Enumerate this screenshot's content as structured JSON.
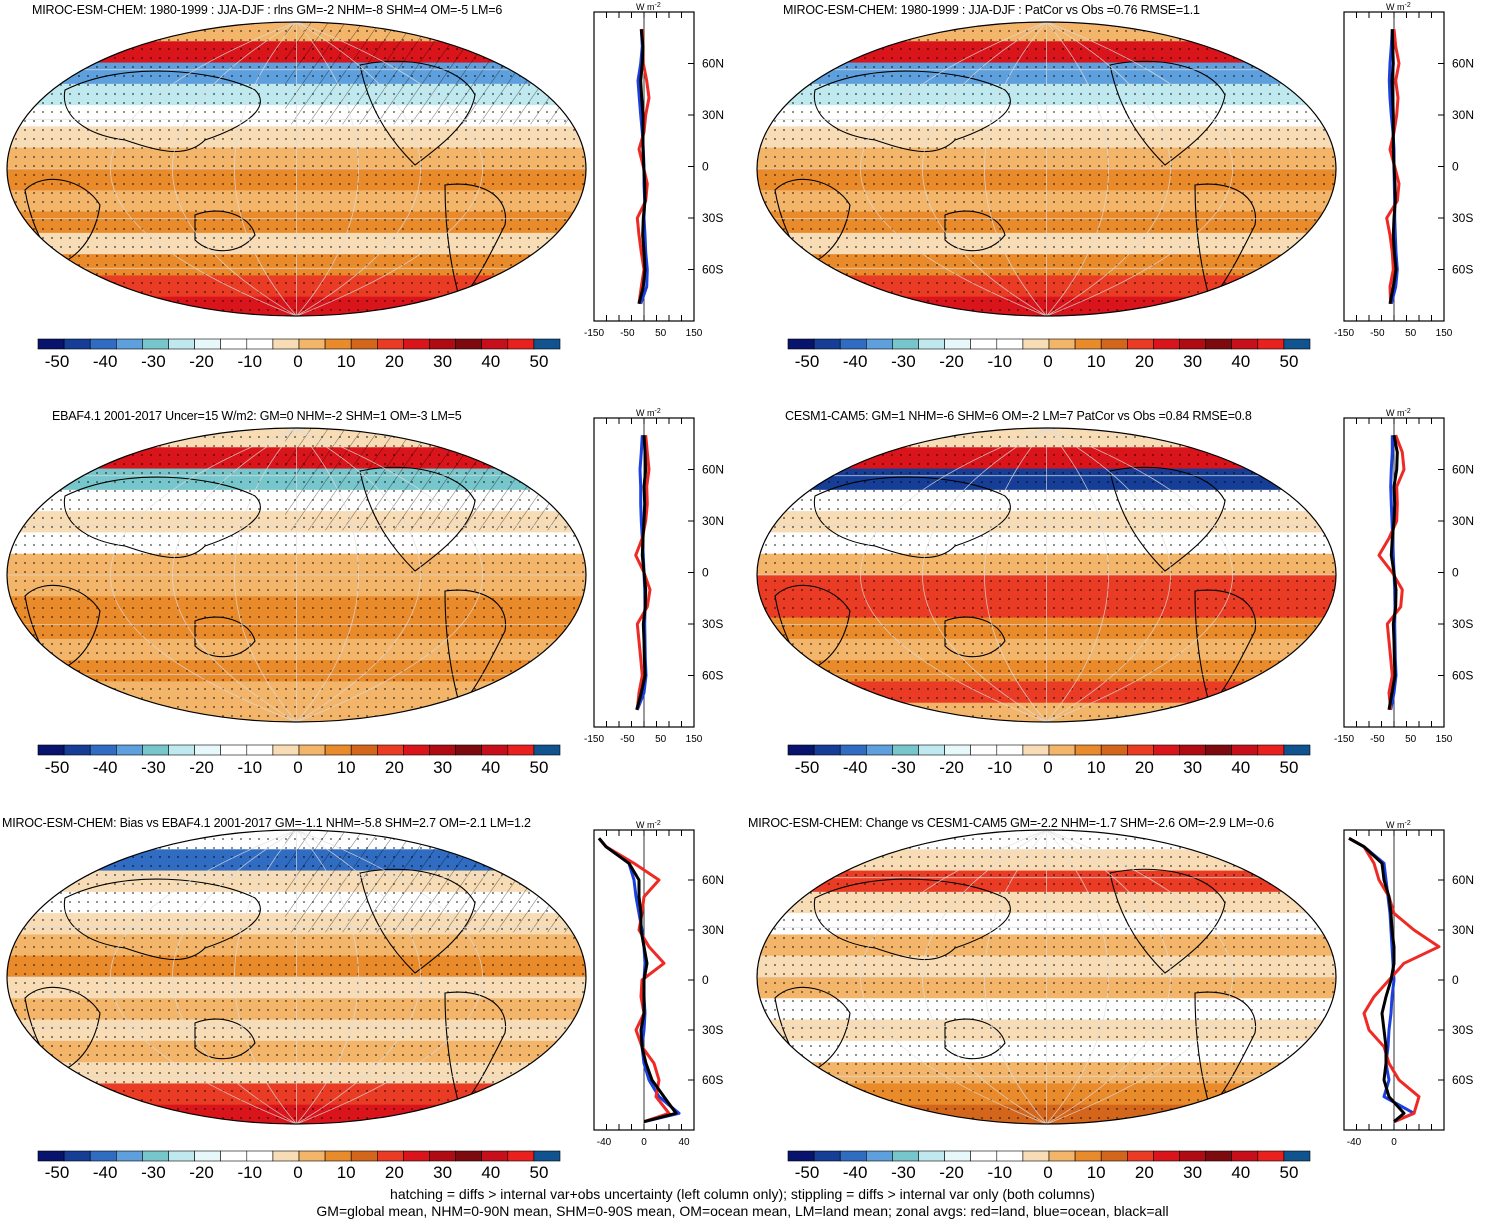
{
  "chart_data": [
    {
      "type": "heatmap",
      "title": "MIROC-ESM-CHEM: 1980-1999 : JJA-DJF : rlns GM=-2 NHM=-8 SHM=4 OM=-5 LM=6",
      "colorbar_ticks": [
        "-50",
        "-40",
        "-30",
        "-20",
        "-10",
        "0",
        "10",
        "20",
        "30",
        "40",
        "50"
      ],
      "zonal": {
        "units": "W m-2",
        "xticks": [
          "-150",
          "-50",
          "50",
          "150"
        ],
        "xlim": [
          -150,
          150
        ],
        "yticks": [
          "60N",
          "30N",
          "0",
          "30S",
          "60S"
        ],
        "lat": [
          80,
          70,
          60,
          50,
          40,
          30,
          20,
          10,
          0,
          -10,
          -20,
          -30,
          -40,
          -50,
          -60,
          -70,
          -80
        ],
        "land": [
          -5,
          -3,
          -2,
          8,
          15,
          5,
          0,
          -15,
          -2,
          10,
          5,
          -20,
          -15,
          -8,
          0,
          -8,
          -15
        ],
        "ocean": [
          -8,
          -5,
          -10,
          -18,
          -14,
          -10,
          -5,
          -2,
          0,
          0,
          2,
          0,
          3,
          5,
          10,
          8,
          -10
        ],
        "all": [
          -8,
          -3,
          -5,
          -10,
          -7,
          -3,
          -3,
          -3,
          -1,
          2,
          3,
          -2,
          -4,
          0,
          3,
          -2,
          -15
        ]
      }
    },
    {
      "type": "heatmap",
      "title": "MIROC-ESM-CHEM: 1980-1999 : JJA-DJF : PatCor vs Obs =0.76 RMSE=1.1",
      "colorbar_ticks": [
        "-50",
        "-40",
        "-30",
        "-20",
        "-10",
        "0",
        "10",
        "20",
        "30",
        "40",
        "50"
      ],
      "zonal": {
        "units": "W m-2",
        "xticks": [
          "-150",
          "-50",
          "50",
          "150"
        ],
        "xlim": [
          -150,
          150
        ],
        "yticks": [
          "60N",
          "30N",
          "0",
          "30S",
          "60S"
        ],
        "lat": [
          80,
          70,
          60,
          50,
          40,
          30,
          20,
          10,
          0,
          -10,
          -20,
          -30,
          -40,
          -50,
          -60,
          -70,
          -80
        ],
        "land": [
          0,
          5,
          15,
          5,
          12,
          8,
          0,
          -12,
          2,
          15,
          10,
          -22,
          -12,
          -5,
          -2,
          -12,
          -10
        ],
        "ocean": [
          -5,
          -8,
          -12,
          -14,
          -12,
          -8,
          -3,
          0,
          0,
          1,
          2,
          2,
          4,
          6,
          10,
          5,
          -8
        ],
        "all": [
          -5,
          -4,
          -2,
          -6,
          -4,
          -2,
          -2,
          -2,
          0,
          3,
          4,
          0,
          -2,
          1,
          6,
          -2,
          -12
        ]
      }
    },
    {
      "type": "heatmap",
      "title": "EBAF4.1 2001-2017 Uncer=15 W/m2: GM=0 NHM=-2 SHM=1 OM=-3 LM=5",
      "colorbar_ticks": [
        "-50",
        "-40",
        "-30",
        "-20",
        "-10",
        "0",
        "10",
        "20",
        "30",
        "40",
        "50"
      ],
      "zonal": {
        "units": "W m-2",
        "xticks": [
          "-150",
          "-50",
          "50",
          "150"
        ],
        "xlim": [
          -150,
          150
        ],
        "yticks": [
          "60N",
          "30N",
          "0",
          "30S",
          "60S"
        ],
        "lat": [
          80,
          70,
          60,
          50,
          40,
          30,
          20,
          10,
          0,
          -10,
          -20,
          -30,
          -40,
          -50,
          -60,
          -70,
          -80
        ],
        "land": [
          5,
          10,
          15,
          8,
          10,
          5,
          -5,
          -25,
          0,
          18,
          10,
          -20,
          -15,
          -10,
          -5,
          -15,
          -20
        ],
        "ocean": [
          -5,
          -8,
          -12,
          -10,
          -10,
          -8,
          -5,
          -2,
          0,
          2,
          3,
          2,
          3,
          4,
          6,
          0,
          -20
        ],
        "all": [
          0,
          3,
          5,
          0,
          2,
          0,
          -3,
          -5,
          0,
          5,
          4,
          -2,
          0,
          1,
          3,
          -8,
          -22
        ]
      }
    },
    {
      "type": "heatmap",
      "title": "CESM1-CAM5: GM=1 NHM=-6 SHM=6 OM=-2 LM=7 PatCor vs Obs =0.84 RMSE=0.8",
      "colorbar_ticks": [
        "-50",
        "-40",
        "-30",
        "-20",
        "-10",
        "0",
        "10",
        "20",
        "30",
        "40",
        "50"
      ],
      "zonal": {
        "units": "W m-2",
        "xticks": [
          "-150",
          "-50",
          "50",
          "150"
        ],
        "xlim": [
          -150,
          150
        ],
        "yticks": [
          "60N",
          "30N",
          "0",
          "30S",
          "60S"
        ],
        "lat": [
          80,
          70,
          60,
          50,
          40,
          30,
          20,
          10,
          0,
          -10,
          -20,
          -30,
          -40,
          -50,
          -60,
          -70,
          -80
        ],
        "land": [
          5,
          25,
          30,
          8,
          10,
          8,
          -15,
          -45,
          -5,
          25,
          20,
          -20,
          -15,
          -10,
          -5,
          -15,
          -10
        ],
        "ocean": [
          -5,
          -5,
          -8,
          -10,
          -8,
          -6,
          -4,
          -2,
          0,
          2,
          3,
          2,
          3,
          4,
          6,
          0,
          -10
        ],
        "all": [
          0,
          10,
          8,
          0,
          2,
          0,
          -5,
          -8,
          0,
          6,
          5,
          -2,
          0,
          1,
          3,
          -6,
          -15
        ]
      }
    },
    {
      "type": "heatmap",
      "title": "MIROC-ESM-CHEM: Bias vs EBAF4.1 2001-2017 GM=-1.1 NHM=-5.8 SHM=2.7 OM=-2.1 LM=1.2",
      "colorbar_ticks": [
        "-50",
        "-40",
        "-30",
        "-20",
        "-10",
        "0",
        "10",
        "20",
        "30",
        "40",
        "50"
      ],
      "zonal": {
        "units": "W m-2",
        "xticks": [
          "-40",
          "0",
          "40"
        ],
        "xlim": [
          -50,
          50
        ],
        "yticks": [
          "60N",
          "30N",
          "0",
          "30S",
          "60S"
        ],
        "lat": [
          85,
          80,
          70,
          60,
          50,
          40,
          30,
          20,
          10,
          0,
          -10,
          -20,
          -30,
          -40,
          -50,
          -60,
          -70,
          -80,
          -85
        ],
        "land": [
          -45,
          -38,
          -10,
          15,
          0,
          -2,
          -5,
          5,
          20,
          -2,
          -3,
          0,
          -8,
          -2,
          10,
          15,
          12,
          25,
          0
        ],
        "ocean": [
          -45,
          -38,
          -15,
          -10,
          -8,
          -5,
          -2,
          0,
          1,
          0,
          0,
          1,
          0,
          -2,
          0,
          5,
          15,
          35,
          0
        ],
        "all": [
          -45,
          -38,
          -15,
          -5,
          -5,
          -3,
          -3,
          0,
          3,
          0,
          0,
          0,
          -3,
          -2,
          2,
          8,
          20,
          32,
          0
        ]
      }
    },
    {
      "type": "heatmap",
      "title": "MIROC-ESM-CHEM: Change vs CESM1-CAM5 GM=-2.2 NHM=-1.7 SHM=-2.6 OM=-2.9 LM=-0.6",
      "colorbar_ticks": [
        "-50",
        "-40",
        "-30",
        "-20",
        "-10",
        "0",
        "10",
        "20",
        "30",
        "40",
        "50"
      ],
      "zonal": {
        "units": "W m-2",
        "xticks": [
          "-40",
          "0"
        ],
        "xlim": [
          -50,
          50
        ],
        "yticks": [
          "60N",
          "30N",
          "0",
          "30S",
          "60S"
        ],
        "lat": [
          85,
          80,
          70,
          60,
          50,
          40,
          30,
          20,
          10,
          0,
          -10,
          -20,
          -30,
          -40,
          -50,
          -60,
          -70,
          -80,
          -85
        ],
        "land": [
          -45,
          -30,
          -20,
          -15,
          -5,
          0,
          20,
          45,
          10,
          -5,
          -20,
          -30,
          -25,
          -10,
          -5,
          5,
          25,
          20,
          0
        ],
        "ocean": [
          -45,
          -30,
          -10,
          -8,
          -6,
          -4,
          -3,
          -2,
          -1,
          0,
          -2,
          -3,
          -5,
          -6,
          -8,
          -5,
          -10,
          20,
          0
        ],
        "all": [
          -45,
          -30,
          -12,
          -10,
          -5,
          -3,
          -2,
          0,
          0,
          -3,
          -8,
          -12,
          -10,
          -8,
          -8,
          -10,
          -5,
          10,
          0
        ]
      }
    }
  ],
  "colorbar_colors": [
    "#08136e",
    "#163e96",
    "#2f6cc2",
    "#5ea0dd",
    "#77c6cb",
    "#bfe9ee",
    "#e7f8fa",
    "#ffffff",
    "#ffffff",
    "#f7dcb5",
    "#f3b56a",
    "#e98a2b",
    "#d4661b",
    "#ea3c25",
    "#d9141a",
    "#b00b12",
    "#7d0a0e",
    "#c70f1b",
    "#e8211f",
    "#11538f"
  ],
  "land_color": "#ef2a24",
  "ocean_color": "#1b3fe0",
  "all_color": "#000000",
  "footer": {
    "line1": "hatching = diffs > internal var+obs uncertainty (left column only); stippling = diffs > internal var only (both columns)",
    "line2": "GM=global mean, NHM=0-90N mean, SHM=0-90S mean, OM=ocean mean, LM=land mean; zonal avgs: red=land, blue=ocean, black=all"
  }
}
